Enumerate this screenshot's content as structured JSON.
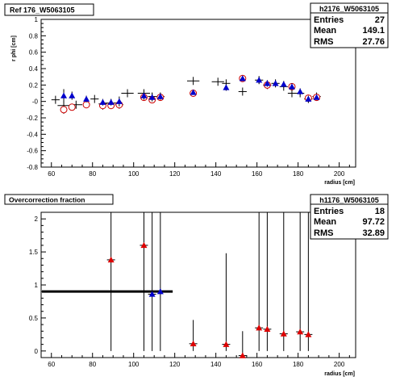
{
  "chart_data": [
    {
      "type": "scatter",
      "title_box": "Ref 176_W5063105",
      "ylabel": "r phi [cm]",
      "xlabel": "radius [cm]",
      "xlim": [
        55,
        208
      ],
      "ylim": [
        -0.8,
        1.0
      ],
      "x_ticks": [
        "60",
        "80",
        "100",
        "120",
        "140",
        "160",
        "180",
        "200"
      ],
      "y_ticks": [
        "-0.8",
        "-0.6",
        "-0.4",
        "-0.2",
        "-0",
        "0.2",
        "0.4",
        "0.6",
        "0.8",
        "1"
      ],
      "stats": {
        "name": "h2176_W5063105",
        "rows": [
          {
            "label": "Entries",
            "value": "27"
          },
          {
            "label": "Mean",
            "value": "149.1"
          },
          {
            "label": "RMS",
            "value": "27.76"
          }
        ]
      },
      "series": [
        {
          "marker": "cross",
          "color": "#000000",
          "points": [
            {
              "x": 62,
              "y": 0.02,
              "ex": 2
            },
            {
              "x": 66,
              "y": -0.05,
              "ex": 3
            },
            {
              "x": 72,
              "y": -0.04,
              "ex": 3
            },
            {
              "x": 81,
              "y": 0.03,
              "ex": 2
            },
            {
              "x": 85,
              "y": -0.03,
              "ex": 2
            },
            {
              "x": 89,
              "y": -0.02,
              "ex": 3
            },
            {
              "x": 93,
              "y": -0.04,
              "ex": 2
            },
            {
              "x": 97,
              "y": 0.1,
              "ex": 3
            },
            {
              "x": 105,
              "y": 0.1,
              "ex": 3
            },
            {
              "x": 109,
              "y": 0.06,
              "ex": 2
            },
            {
              "x": 113,
              "y": 0.06,
              "ex": 2
            },
            {
              "x": 129,
              "y": 0.25,
              "ex": 3
            },
            {
              "x": 141,
              "y": 0.24,
              "ex": 3
            },
            {
              "x": 145,
              "y": 0.22,
              "ex": 2
            },
            {
              "x": 153,
              "y": 0.12,
              "ex": 2
            },
            {
              "x": 161,
              "y": 0.26,
              "ex": 2
            },
            {
              "x": 165,
              "y": 0.2,
              "ex": 2
            },
            {
              "x": 169,
              "y": 0.22,
              "ex": 2
            },
            {
              "x": 173,
              "y": 0.18,
              "ex": 2
            },
            {
              "x": 177,
              "y": 0.1,
              "ex": 2
            },
            {
              "x": 181,
              "y": 0.1,
              "ex": 2
            },
            {
              "x": 185,
              "y": 0.03,
              "ex": 2
            },
            {
              "x": 189,
              "y": 0.06,
              "ex": 2
            }
          ]
        },
        {
          "marker": "open-circle",
          "color": "#cc0000",
          "points": [
            {
              "x": 66,
              "y": -0.1,
              "ey": 0.05
            },
            {
              "x": 70,
              "y": -0.07,
              "ey": 0.04
            },
            {
              "x": 77,
              "y": -0.04,
              "ey": 0.03
            },
            {
              "x": 85,
              "y": -0.05,
              "ey": 0.05
            },
            {
              "x": 89,
              "y": -0.05,
              "ey": 0.04
            },
            {
              "x": 93,
              "y": -0.04,
              "ey": 0.04
            },
            {
              "x": 105,
              "y": 0.05,
              "ey": 0.04
            },
            {
              "x": 109,
              "y": 0.02,
              "ey": 0.04
            },
            {
              "x": 113,
              "y": 0.05,
              "ey": 0.03
            },
            {
              "x": 129,
              "y": 0.1,
              "ey": 0.03
            },
            {
              "x": 153,
              "y": 0.28,
              "ey": 0.03
            },
            {
              "x": 165,
              "y": 0.2,
              "ey": 0.04
            },
            {
              "x": 177,
              "y": 0.18,
              "ey": 0.04
            },
            {
              "x": 185,
              "y": 0.04,
              "ey": 0.04
            },
            {
              "x": 189,
              "y": 0.05,
              "ey": 0.03
            }
          ]
        },
        {
          "marker": "filled-triangle",
          "color": "#0000cc",
          "points": [
            {
              "x": 66,
              "y": 0.07,
              "ey": 0.08
            },
            {
              "x": 70,
              "y": 0.07,
              "ey": 0.05
            },
            {
              "x": 77,
              "y": 0.03,
              "ey": 0.04
            },
            {
              "x": 85,
              "y": -0.01,
              "ey": 0.04
            },
            {
              "x": 89,
              "y": -0.01,
              "ey": 0.04
            },
            {
              "x": 93,
              "y": 0.0,
              "ey": 0.06
            },
            {
              "x": 105,
              "y": 0.07,
              "ey": 0.05
            },
            {
              "x": 109,
              "y": 0.05,
              "ey": 0.05
            },
            {
              "x": 113,
              "y": 0.06,
              "ey": 0.04
            },
            {
              "x": 129,
              "y": 0.11,
              "ey": 0.03
            },
            {
              "x": 145,
              "y": 0.17,
              "ey": 0.04
            },
            {
              "x": 153,
              "y": 0.28,
              "ey": 0.03
            },
            {
              "x": 161,
              "y": 0.26,
              "ey": 0.04
            },
            {
              "x": 165,
              "y": 0.22,
              "ey": 0.04
            },
            {
              "x": 169,
              "y": 0.22,
              "ey": 0.04
            },
            {
              "x": 173,
              "y": 0.21,
              "ey": 0.04
            },
            {
              "x": 177,
              "y": 0.18,
              "ey": 0.04
            },
            {
              "x": 181,
              "y": 0.12,
              "ey": 0.04
            },
            {
              "x": 185,
              "y": 0.03,
              "ey": 0.04
            },
            {
              "x": 189,
              "y": 0.05,
              "ey": 0.03
            }
          ]
        }
      ]
    },
    {
      "type": "scatter",
      "title_box": "Overcorrection fraction",
      "xlabel": "radius [cm]",
      "xlim": [
        55,
        208
      ],
      "ylim": [
        -0.1,
        2.1
      ],
      "x_ticks": [
        "60",
        "80",
        "100",
        "120",
        "140",
        "160",
        "180",
        "200"
      ],
      "y_ticks": [
        "0",
        "0.5",
        "1",
        "1.5",
        "2"
      ],
      "stats": {
        "name": "h1176_W5063105",
        "rows": [
          {
            "label": "Entries",
            "value": "18"
          },
          {
            "label": "Mean",
            "value": "97.72"
          },
          {
            "label": "RMS",
            "value": "32.89"
          }
        ]
      },
      "reference_line": {
        "x0": 55,
        "x1": 119,
        "y": 0.9,
        "color": "#000000"
      },
      "series": [
        {
          "marker": "filled-triangle",
          "color": "#dd0000",
          "points": [
            {
              "x": 89,
              "y": 1.38,
              "ylo": 0.0,
              "yhi": 2.1
            },
            {
              "x": 105,
              "y": 1.6,
              "ylo": 0.0,
              "yhi": 2.1
            },
            {
              "x": 129,
              "y": 0.11,
              "ylo": 0.0,
              "yhi": 0.47
            },
            {
              "x": 145,
              "y": 0.1,
              "ylo": 0.0,
              "yhi": 1.48
            },
            {
              "x": 153,
              "y": -0.07,
              "ylo": -0.1,
              "yhi": 0.3
            },
            {
              "x": 161,
              "y": 0.35,
              "ylo": 0.0,
              "yhi": 2.1
            },
            {
              "x": 165,
              "y": 0.33,
              "ylo": 0.0,
              "yhi": 2.1
            },
            {
              "x": 173,
              "y": 0.26,
              "ylo": 0.0,
              "yhi": 2.1
            },
            {
              "x": 181,
              "y": 0.29,
              "ylo": 0.0,
              "yhi": 2.1
            },
            {
              "x": 185,
              "y": 0.25,
              "ylo": 0.0,
              "yhi": 2.1
            }
          ]
        },
        {
          "marker": "filled-triangle",
          "color": "#0000cc",
          "points": [
            {
              "x": 109,
              "y": 0.86,
              "ylo": 0.0,
              "yhi": 2.1
            },
            {
              "x": 113,
              "y": 0.9,
              "ylo": 0.0,
              "yhi": 2.1
            }
          ]
        }
      ]
    }
  ]
}
